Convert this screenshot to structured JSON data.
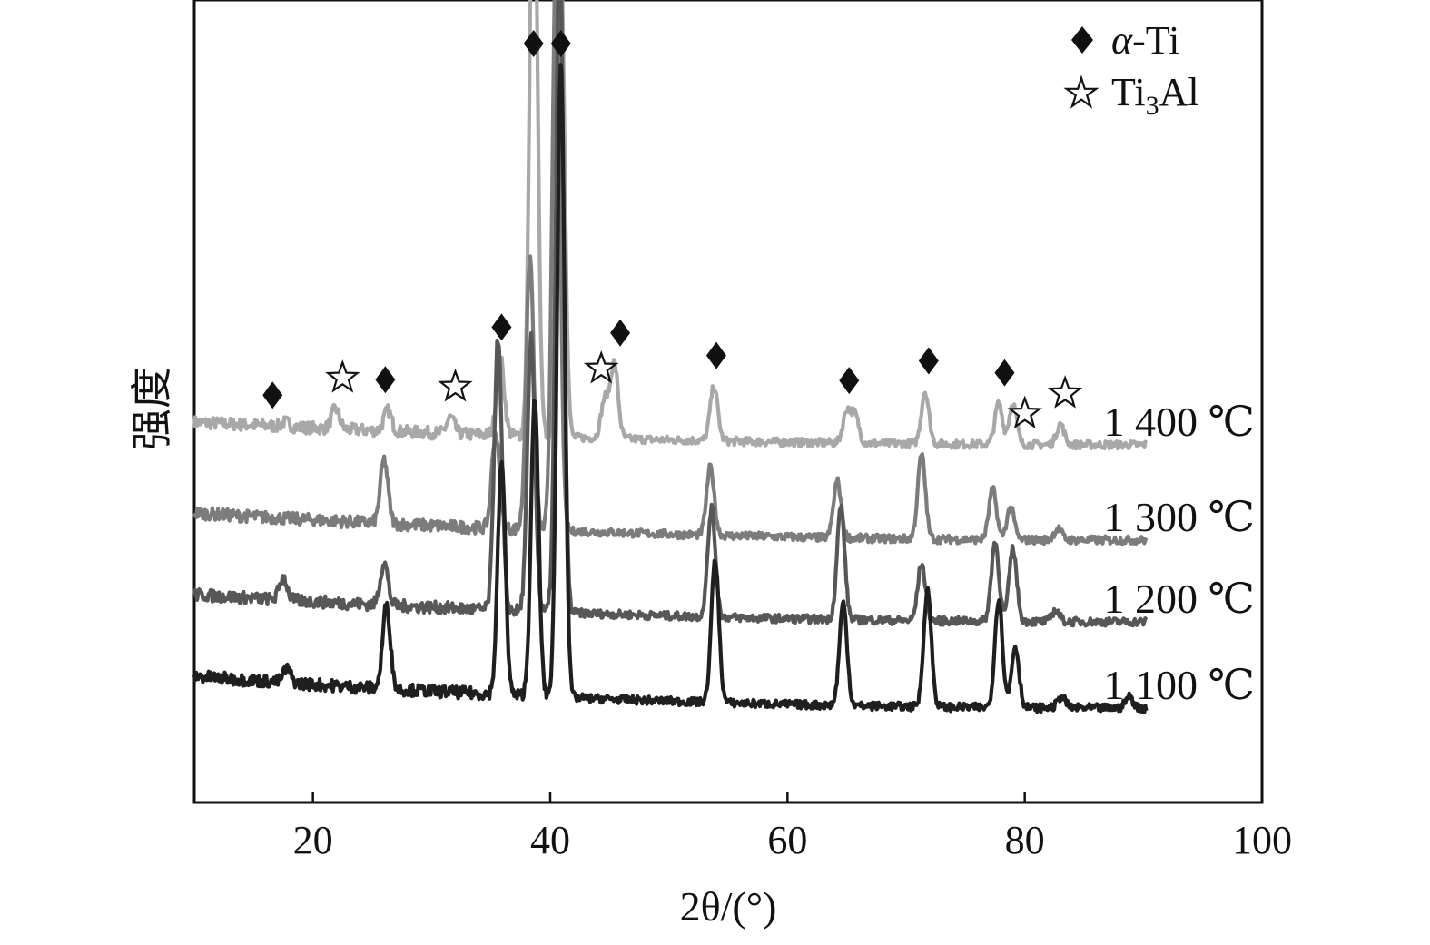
{
  "chart_data": {
    "type": "line",
    "title": "",
    "xlabel": "2θ/(°)",
    "ylabel": "强度",
    "xlim": [
      10,
      100
    ],
    "xticks": [
      20,
      40,
      60,
      80,
      100
    ],
    "yticks_shown": false,
    "grid": false,
    "legend_position": "top-right",
    "legend": [
      {
        "marker": "diamond-filled",
        "label_prefix": "α",
        "label_suffix": "-Ti"
      },
      {
        "marker": "star-open",
        "label_main": "Ti",
        "label_sub": "3",
        "label_tail": "Al"
      }
    ],
    "series": [
      {
        "name": "1 400 ℃",
        "color": "#a8a8a8",
        "baseline_start": 0.74,
        "baseline_end": 0.64,
        "peaks": [
          [
            17.7,
            0.02
          ],
          [
            21.9,
            0.09
          ],
          [
            26.3,
            0.09
          ],
          [
            31.6,
            0.07
          ],
          [
            35.8,
            0.34
          ],
          [
            38.6,
            2.8
          ],
          [
            40.9,
            2.1
          ],
          [
            44.6,
            0.17
          ],
          [
            45.4,
            0.33
          ],
          [
            53.8,
            0.24
          ],
          [
            65.0,
            0.14
          ],
          [
            65.7,
            0.12
          ],
          [
            71.6,
            0.23
          ],
          [
            77.8,
            0.18
          ],
          [
            79.0,
            0.18
          ],
          [
            83.0,
            0.09
          ]
        ]
      },
      {
        "name": "1 300 ℃",
        "color": "#7c7c7c",
        "baseline_start": 0.34,
        "baseline_end": 0.22,
        "peaks": [
          [
            26.0,
            0.28
          ],
          [
            35.4,
            0.42
          ],
          [
            38.3,
            1.2
          ],
          [
            40.5,
            2.6
          ],
          [
            53.5,
            0.3
          ],
          [
            64.2,
            0.25
          ],
          [
            71.3,
            0.37
          ],
          [
            77.3,
            0.22
          ],
          [
            78.8,
            0.14
          ],
          [
            82.8,
            0.05
          ]
        ]
      },
      {
        "name": "1 200 ℃",
        "color": "#575757",
        "baseline_start": -0.02,
        "baseline_end": -0.14,
        "peaks": [
          [
            17.5,
            0.1
          ],
          [
            26.0,
            0.19
          ],
          [
            35.6,
            1.2
          ],
          [
            38.4,
            1.2
          ],
          [
            40.8,
            3.0
          ],
          [
            53.6,
            0.48
          ],
          [
            64.5,
            0.5
          ],
          [
            71.3,
            0.25
          ],
          [
            77.5,
            0.35
          ],
          [
            79.0,
            0.32
          ],
          [
            82.6,
            0.05
          ]
        ]
      },
      {
        "name": "1 100 ℃",
        "color": "#1f1f1f",
        "baseline_start": -0.38,
        "baseline_end": -0.52,
        "peaks": [
          [
            17.8,
            0.06
          ],
          [
            26.2,
            0.37
          ],
          [
            35.9,
            1.03
          ],
          [
            38.7,
            1.3
          ],
          [
            40.9,
            2.8
          ],
          [
            53.9,
            0.63
          ],
          [
            64.7,
            0.45
          ],
          [
            71.8,
            0.52
          ],
          [
            77.8,
            0.48
          ],
          [
            79.2,
            0.27
          ],
          [
            83.1,
            0.05
          ],
          [
            88.8,
            0.05
          ]
        ]
      }
    ],
    "annotations": [
      {
        "marker": "diamond",
        "x": 38.6,
        "series": "1 400 ℃"
      },
      {
        "marker": "diamond",
        "x": 40.9,
        "series": "1 400 ℃"
      },
      {
        "marker": "diamond",
        "x": 45.9,
        "series": "1 400 ℃"
      },
      {
        "marker": "diamond",
        "x": 78.3,
        "series": "1 400 ℃"
      },
      {
        "marker": "diamond",
        "x": 16.6,
        "series": "1 400 ℃"
      },
      {
        "marker": "diamond",
        "x": 26.1,
        "series": "1 400 ℃"
      },
      {
        "marker": "diamond",
        "x": 35.9,
        "series": "1 400 ℃"
      },
      {
        "marker": "diamond",
        "x": 54.0,
        "series": "1 400 ℃"
      },
      {
        "marker": "diamond",
        "x": 65.2,
        "series": "1 400 ℃"
      },
      {
        "marker": "diamond",
        "x": 71.9,
        "series": "1 400 ℃"
      },
      {
        "marker": "star",
        "x": 22.5,
        "series": "1 400 ℃"
      },
      {
        "marker": "star",
        "x": 32.0,
        "series": "1 400 ℃"
      },
      {
        "marker": "star",
        "x": 44.3,
        "series": "1 400 ℃"
      },
      {
        "marker": "star",
        "x": 80.0,
        "series": "1 400 ℃"
      },
      {
        "marker": "star",
        "x": 83.4,
        "series": "1 400 ℃"
      }
    ]
  }
}
